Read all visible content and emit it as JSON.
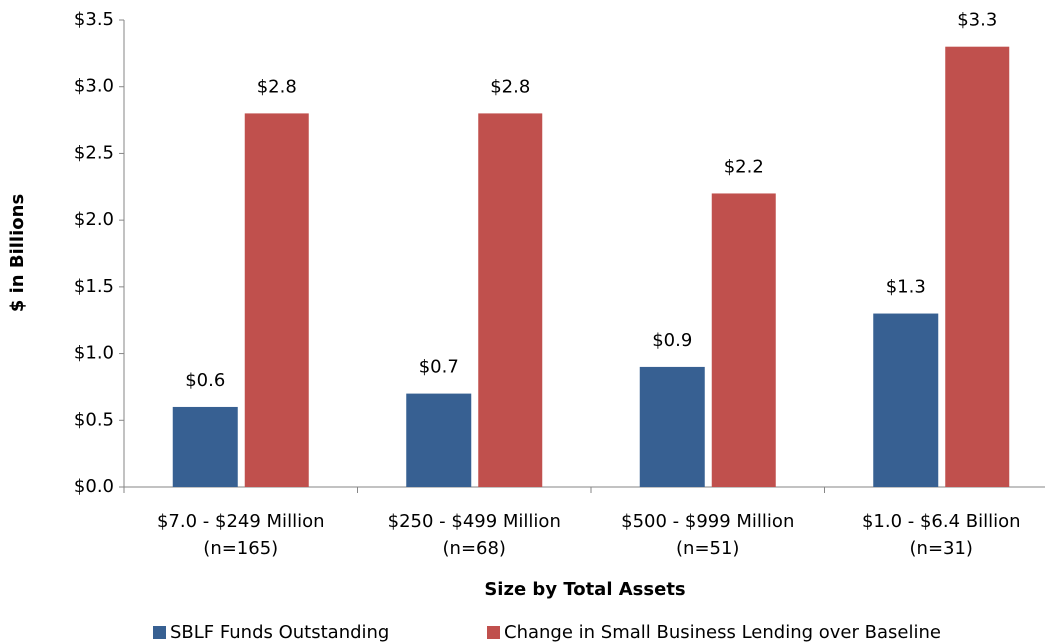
{
  "chart_data": {
    "type": "bar",
    "x_label": "Size by Total Assets",
    "y_label": "$ in Billions",
    "categories": [
      [
        "$7.0 - $249 Million",
        "(n=165)"
      ],
      [
        "$250 - $499 Million",
        "(n=68)"
      ],
      [
        "$500 - $999 Million",
        "(n=51)"
      ],
      [
        "$1.0 - $6.4 Billion",
        "(n=31)"
      ]
    ],
    "series": [
      {
        "name": "SBLF Funds Outstanding",
        "color": "#376092",
        "values": [
          0.6,
          0.7,
          0.9,
          1.3
        ],
        "value_labels": [
          "$0.6",
          "$0.7",
          "$0.9",
          "$1.3"
        ]
      },
      {
        "name": "Change in Small Business Lending over Baseline",
        "color": "#c0504d",
        "values": [
          2.8,
          2.8,
          2.2,
          3.3
        ],
        "value_labels": [
          "$2.8",
          "$2.8",
          "$2.2",
          "$3.3"
        ]
      }
    ],
    "ylim": [
      0,
      3.5
    ],
    "yticks": [
      {
        "value": 0,
        "label": "$0.0"
      },
      {
        "value": 0.5,
        "label": "$0.5"
      },
      {
        "value": 1,
        "label": "$1.0"
      },
      {
        "value": 1.5,
        "label": "$1.5"
      },
      {
        "value": 2,
        "label": "$2.0"
      },
      {
        "value": 2.5,
        "label": "$2.5"
      },
      {
        "value": 3,
        "label": "$3.0"
      },
      {
        "value": 3.5,
        "label": "$3.5"
      }
    ],
    "grid": false,
    "legend": "bottom"
  }
}
